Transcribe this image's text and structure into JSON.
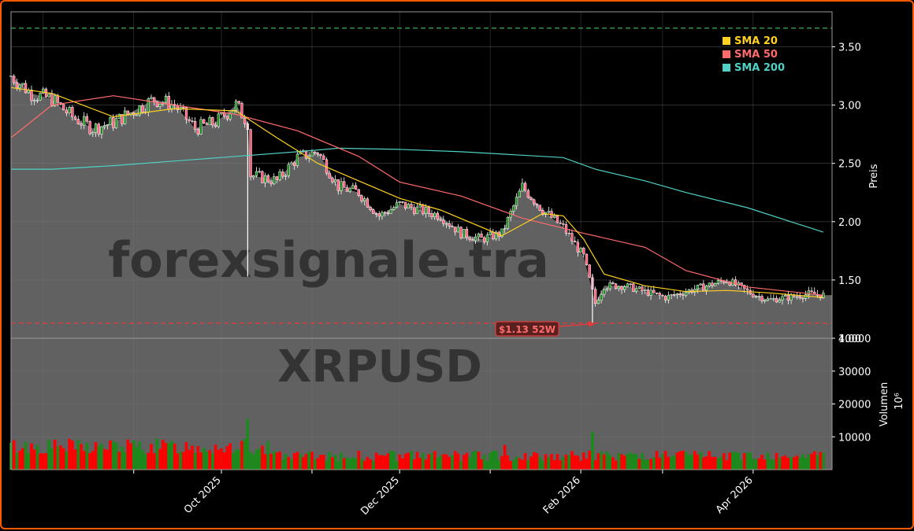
{
  "chart_data": [
    {
      "type": "candlestick",
      "panel": "price",
      "symbol": "XRPUSD",
      "watermark": "forexsignale.tra",
      "ylabel": "Preis",
      "ylim": [
        1.0,
        3.8
      ],
      "yticks": [
        "1.00",
        "1.50",
        "2.00",
        "2.50",
        "3.00",
        "3.50"
      ],
      "xtick_labels": [
        "Oct 2025",
        "Dec 2025",
        "Feb 2026",
        "Apr 2026"
      ],
      "xtick_dates": [
        "2025-10-01",
        "2025-12-01",
        "2026-02-01",
        "2026-04-01"
      ],
      "x_range": [
        "2025-07-21",
        "2026-04-28"
      ],
      "grid": true,
      "legend": {
        "placement": "top-right",
        "entries": [
          {
            "label": "SMA 20",
            "color": "#ffd21f"
          },
          {
            "label": "SMA 50",
            "color": "#ff6b6b"
          },
          {
            "label": "SMA 200",
            "color": "#4fd1c5"
          }
        ]
      },
      "reference_lines": [
        {
          "value": 3.66,
          "style": "dashed",
          "color": "#3fae5a"
        },
        {
          "value": 1.13,
          "style": "dashed",
          "color": "#e03b3b"
        }
      ],
      "annotation": {
        "text": "$1.13 52W",
        "date": "2026-02-06",
        "value": 1.13,
        "color": "#e03b3b"
      },
      "close_series": {
        "dates": [
          "2025-07-21",
          "2025-07-28",
          "2025-08-04",
          "2025-08-11",
          "2025-08-18",
          "2025-08-25",
          "2025-09-01",
          "2025-09-08",
          "2025-09-15",
          "2025-09-22",
          "2025-09-29",
          "2025-10-06",
          "2025-10-10",
          "2025-10-11",
          "2025-10-20",
          "2025-10-27",
          "2025-11-03",
          "2025-11-10",
          "2025-11-17",
          "2025-11-24",
          "2025-12-01",
          "2025-12-08",
          "2025-12-15",
          "2025-12-22",
          "2025-12-29",
          "2026-01-05",
          "2026-01-12",
          "2026-01-19",
          "2026-01-26",
          "2026-02-02",
          "2026-02-06",
          "2026-02-09",
          "2026-02-16",
          "2026-02-23",
          "2026-03-02",
          "2026-03-09",
          "2026-03-16",
          "2026-03-23",
          "2026-03-30",
          "2026-04-06",
          "2026-04-13",
          "2026-04-20",
          "2026-04-25"
        ],
        "close": [
          3.25,
          3.1,
          3.05,
          2.9,
          2.8,
          2.85,
          2.95,
          3.05,
          3.0,
          2.8,
          2.85,
          3.0,
          2.85,
          2.4,
          2.35,
          2.55,
          2.6,
          2.3,
          2.25,
          2.05,
          2.15,
          2.1,
          2.05,
          1.9,
          1.85,
          1.9,
          2.3,
          2.1,
          1.95,
          1.7,
          1.3,
          1.45,
          1.45,
          1.4,
          1.35,
          1.4,
          1.45,
          1.5,
          1.4,
          1.33,
          1.35,
          1.38,
          1.37
        ]
      },
      "sma20": {
        "dates": [
          "2025-07-21",
          "2025-08-04",
          "2025-08-25",
          "2025-09-15",
          "2025-10-06",
          "2025-10-20",
          "2025-11-03",
          "2025-11-17",
          "2025-12-01",
          "2025-12-15",
          "2026-01-05",
          "2026-01-19",
          "2026-01-26",
          "2026-02-02",
          "2026-02-09",
          "2026-02-23",
          "2026-03-09",
          "2026-03-23",
          "2026-04-06",
          "2026-04-25"
        ],
        "values": [
          3.15,
          3.1,
          2.9,
          2.97,
          2.95,
          2.72,
          2.5,
          2.35,
          2.2,
          2.1,
          1.88,
          2.07,
          2.05,
          1.85,
          1.55,
          1.45,
          1.4,
          1.41,
          1.39,
          1.35
        ]
      },
      "sma50": {
        "dates": [
          "2025-07-21",
          "2025-08-04",
          "2025-08-25",
          "2025-09-15",
          "2025-10-06",
          "2025-10-27",
          "2025-11-17",
          "2025-12-01",
          "2025-12-22",
          "2026-01-12",
          "2026-02-02",
          "2026-02-23",
          "2026-03-09",
          "2026-03-30",
          "2026-04-25"
        ],
        "values": [
          2.72,
          3.0,
          3.08,
          3.0,
          2.92,
          2.78,
          2.56,
          2.34,
          2.22,
          2.03,
          1.9,
          1.78,
          1.58,
          1.44,
          1.37
        ]
      },
      "sma200": {
        "dates": [
          "2025-07-21",
          "2025-08-04",
          "2025-08-25",
          "2025-09-15",
          "2025-10-06",
          "2025-10-27",
          "2025-11-10",
          "2025-12-01",
          "2025-12-22",
          "2026-01-12",
          "2026-01-26",
          "2026-02-06",
          "2026-02-23",
          "2026-03-09",
          "2026-03-30",
          "2026-04-25"
        ],
        "values": [
          2.45,
          2.45,
          2.48,
          2.52,
          2.56,
          2.6,
          2.63,
          2.62,
          2.6,
          2.57,
          2.55,
          2.45,
          2.35,
          2.25,
          2.12,
          1.91
        ]
      }
    },
    {
      "type": "bar",
      "panel": "volume",
      "ylabel": "Volumen",
      "yunit": "10⁶",
      "ylim": [
        0,
        40000
      ],
      "yticks": [
        "10000",
        "20000",
        "30000",
        "40000"
      ],
      "colors": {
        "up": "#1a8a1a",
        "down": "#ff0000"
      },
      "peaks": [
        {
          "date": "2025-10-10",
          "value": 15500
        },
        {
          "date": "2026-02-05",
          "value": 11500
        },
        {
          "date": "2026-01-06",
          "value": 7500
        }
      ],
      "typical_range": [
        1500,
        9000
      ]
    }
  ]
}
